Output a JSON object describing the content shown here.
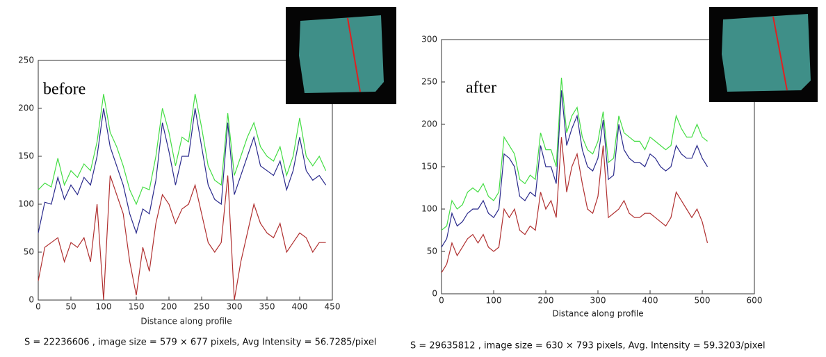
{
  "chart_data": [
    {
      "type": "line",
      "annotation": "before",
      "xlabel": "Distance along profile",
      "caption": "S = 22236606 , image size = 579 × 677 pixels, Avg Intensity = 56.7285/pixel",
      "xlim": [
        0,
        450
      ],
      "ylim": [
        0,
        250
      ],
      "xticks": [
        0,
        50,
        100,
        150,
        200,
        250,
        300,
        350,
        400,
        450
      ],
      "yticks": [
        0,
        50,
        100,
        150,
        200,
        250
      ],
      "x": [
        0,
        10,
        20,
        30,
        40,
        50,
        60,
        70,
        80,
        90,
        100,
        110,
        120,
        130,
        140,
        150,
        160,
        170,
        180,
        190,
        200,
        210,
        220,
        230,
        240,
        250,
        260,
        270,
        280,
        290,
        300,
        310,
        320,
        330,
        340,
        350,
        360,
        370,
        380,
        390,
        400,
        410,
        420,
        430,
        440
      ],
      "series": [
        {
          "color": "#44dd44",
          "values": [
            115,
            122,
            118,
            148,
            120,
            135,
            128,
            142,
            135,
            165,
            215,
            175,
            160,
            140,
            115,
            100,
            118,
            115,
            150,
            200,
            175,
            140,
            170,
            165,
            215,
            180,
            140,
            125,
            120,
            195,
            130,
            150,
            170,
            185,
            160,
            150,
            145,
            160,
            130,
            150,
            190,
            150,
            140,
            150,
            135
          ]
        },
        {
          "color": "#2a2a8c",
          "values": [
            70,
            102,
            100,
            128,
            105,
            120,
            110,
            128,
            120,
            150,
            200,
            160,
            140,
            120,
            90,
            70,
            95,
            90,
            125,
            185,
            155,
            120,
            150,
            150,
            200,
            160,
            120,
            105,
            100,
            185,
            110,
            130,
            150,
            170,
            140,
            135,
            130,
            145,
            115,
            135,
            170,
            135,
            125,
            130,
            120
          ]
        },
        {
          "color": "#b03030",
          "values": [
            20,
            55,
            60,
            65,
            40,
            60,
            55,
            65,
            40,
            100,
            0,
            130,
            110,
            90,
            40,
            5,
            55,
            30,
            80,
            110,
            100,
            80,
            95,
            100,
            120,
            90,
            60,
            50,
            60,
            130,
            0,
            40,
            70,
            100,
            80,
            70,
            65,
            80,
            50,
            60,
            70,
            65,
            50,
            60,
            60
          ]
        }
      ]
    },
    {
      "type": "line",
      "annotation": "after",
      "xlabel": "Distance along profile",
      "caption": "S = 29635812 , image size = 630 × 793 pixels, Avg. Intensity = 59.3203/pixel",
      "xlim": [
        0,
        600
      ],
      "ylim": [
        0,
        300
      ],
      "xticks": [
        0,
        100,
        200,
        300,
        400,
        500,
        600
      ],
      "yticks": [
        0,
        50,
        100,
        150,
        200,
        250,
        300
      ],
      "x": [
        0,
        10,
        20,
        30,
        40,
        50,
        60,
        70,
        80,
        90,
        100,
        110,
        120,
        130,
        140,
        150,
        160,
        170,
        180,
        190,
        200,
        210,
        220,
        230,
        240,
        250,
        260,
        270,
        280,
        290,
        300,
        310,
        320,
        330,
        340,
        350,
        360,
        370,
        380,
        390,
        400,
        410,
        420,
        430,
        440,
        450,
        460,
        470,
        480,
        490,
        500,
        510
      ],
      "series": [
        {
          "color": "#44dd44",
          "values": [
            75,
            80,
            110,
            100,
            105,
            120,
            125,
            120,
            130,
            115,
            110,
            120,
            185,
            175,
            165,
            135,
            130,
            140,
            135,
            190,
            170,
            170,
            150,
            255,
            190,
            210,
            220,
            185,
            170,
            165,
            180,
            215,
            155,
            160,
            210,
            190,
            185,
            180,
            180,
            170,
            185,
            180,
            175,
            170,
            175,
            210,
            195,
            185,
            185,
            200,
            185,
            180
          ]
        },
        {
          "color": "#2a2a8c",
          "values": [
            55,
            65,
            95,
            80,
            85,
            95,
            100,
            100,
            110,
            95,
            90,
            100,
            165,
            160,
            150,
            115,
            110,
            120,
            115,
            175,
            150,
            150,
            130,
            240,
            175,
            195,
            210,
            170,
            150,
            145,
            160,
            205,
            135,
            140,
            200,
            170,
            160,
            155,
            155,
            150,
            165,
            160,
            150,
            145,
            150,
            175,
            165,
            160,
            160,
            175,
            160,
            150
          ]
        },
        {
          "color": "#b03030",
          "values": [
            25,
            35,
            60,
            45,
            55,
            65,
            70,
            60,
            70,
            55,
            50,
            55,
            100,
            90,
            100,
            75,
            70,
            80,
            75,
            120,
            100,
            110,
            90,
            185,
            120,
            150,
            165,
            130,
            100,
            95,
            115,
            175,
            90,
            95,
            100,
            110,
            95,
            90,
            90,
            95,
            95,
            90,
            85,
            80,
            90,
            120,
            110,
            100,
            90,
            100,
            85,
            60
          ]
        }
      ]
    }
  ]
}
